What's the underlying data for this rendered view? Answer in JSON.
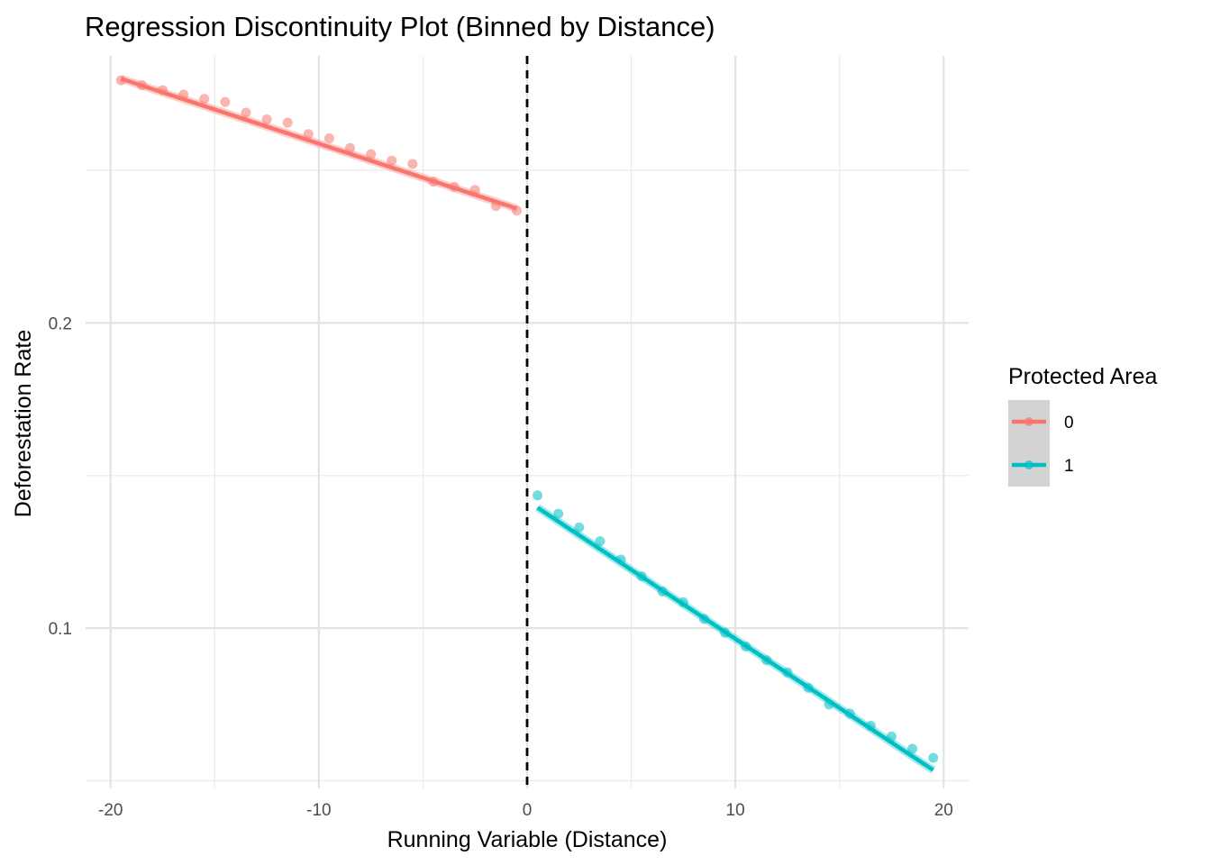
{
  "chart_data": {
    "type": "scatter",
    "title": "Regression Discontinuity Plot (Binned by Distance)",
    "xlabel": "Running Variable (Distance)",
    "ylabel": "Deforestation Rate",
    "xlim": [
      -21.2,
      21.2
    ],
    "ylim": [
      0.0475,
      0.2875
    ],
    "x_ticks": [
      -20,
      -10,
      0,
      10,
      20
    ],
    "x_tick_labels": [
      "-20",
      "-10",
      "0",
      "10",
      "20"
    ],
    "y_ticks": [
      0.1,
      0.2
    ],
    "y_tick_labels": [
      "0.1",
      "0.2"
    ],
    "grid": true,
    "cutoff": 0,
    "legend": {
      "title": "Protected Area",
      "position": "right",
      "entries": [
        "0",
        "1"
      ]
    },
    "series": [
      {
        "name": "0",
        "color": "#F8766D",
        "x": [
          -19.5,
          -18.5,
          -17.5,
          -16.5,
          -15.5,
          -14.5,
          -13.5,
          -12.5,
          -11.5,
          -10.5,
          -9.5,
          -8.5,
          -7.5,
          -6.5,
          -5.5,
          -4.5,
          -3.5,
          -2.5,
          -1.5,
          -0.5
        ],
        "y": [
          0.2795,
          0.2779,
          0.2763,
          0.2748,
          0.2734,
          0.2724,
          0.2689,
          0.2667,
          0.2656,
          0.2619,
          0.2605,
          0.2573,
          0.2553,
          0.2532,
          0.2521,
          0.2463,
          0.2446,
          0.2436,
          0.2383,
          0.2368
        ],
        "fit": {
          "x": [
            -19.5,
            -0.5
          ],
          "y": [
            0.28,
            0.2375
          ]
        }
      },
      {
        "name": "1",
        "color": "#00BFC4",
        "x": [
          0.5,
          1.5,
          2.5,
          3.5,
          4.5,
          5.5,
          6.5,
          7.5,
          8.5,
          9.5,
          10.5,
          11.5,
          12.5,
          13.5,
          14.5,
          15.5,
          16.5,
          17.5,
          18.5,
          19.5
        ],
        "y": [
          0.1435,
          0.1375,
          0.133,
          0.1285,
          0.1225,
          0.117,
          0.112,
          0.1085,
          0.103,
          0.0985,
          0.094,
          0.0895,
          0.0855,
          0.0805,
          0.075,
          0.072,
          0.068,
          0.0645,
          0.0605,
          0.0575
        ],
        "fit": {
          "x": [
            0.5,
            19.5
          ],
          "y": [
            0.1395,
            0.0535
          ]
        }
      }
    ]
  }
}
